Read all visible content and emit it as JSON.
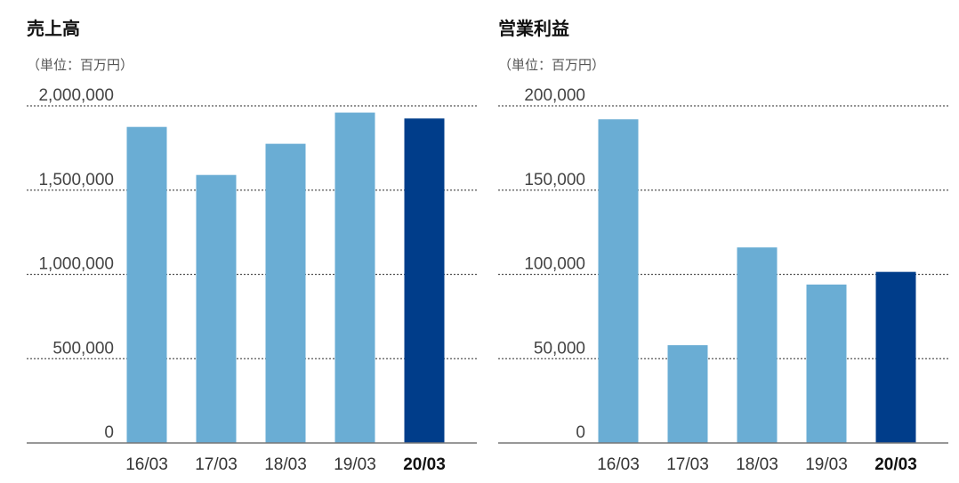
{
  "colors": {
    "bar": "#6aadd4",
    "highlight_bar": "#003d8a",
    "grid": "#555555",
    "axis": "#777777"
  },
  "chart_data": [
    {
      "type": "bar",
      "title": "売上高",
      "unit_label": "（単位：百万円）",
      "categories": [
        "16/03",
        "17/03",
        "18/03",
        "19/03",
        "20/03"
      ],
      "values": [
        1875000,
        1590000,
        1775000,
        1960000,
        1925000
      ],
      "highlight_category": "20/03",
      "ylim": [
        0,
        2000000
      ],
      "yticks": [
        0,
        500000,
        1000000,
        1500000,
        2000000
      ],
      "ytick_labels": [
        "0",
        "500,000",
        "1,000,000",
        "1,500,000",
        "2,000,000"
      ],
      "grid": true,
      "xlabel": "",
      "ylabel": ""
    },
    {
      "type": "bar",
      "title": "営業利益",
      "unit_label": "（単位：百万円）",
      "categories": [
        "16/03",
        "17/03",
        "18/03",
        "19/03",
        "20/03"
      ],
      "values": [
        192000,
        58000,
        116000,
        94000,
        101500
      ],
      "highlight_category": "20/03",
      "ylim": [
        0,
        200000
      ],
      "yticks": [
        0,
        50000,
        100000,
        150000,
        200000
      ],
      "ytick_labels": [
        "0",
        "50,000",
        "100,000",
        "150,000",
        "200,000"
      ],
      "grid": true,
      "xlabel": "",
      "ylabel": ""
    }
  ]
}
